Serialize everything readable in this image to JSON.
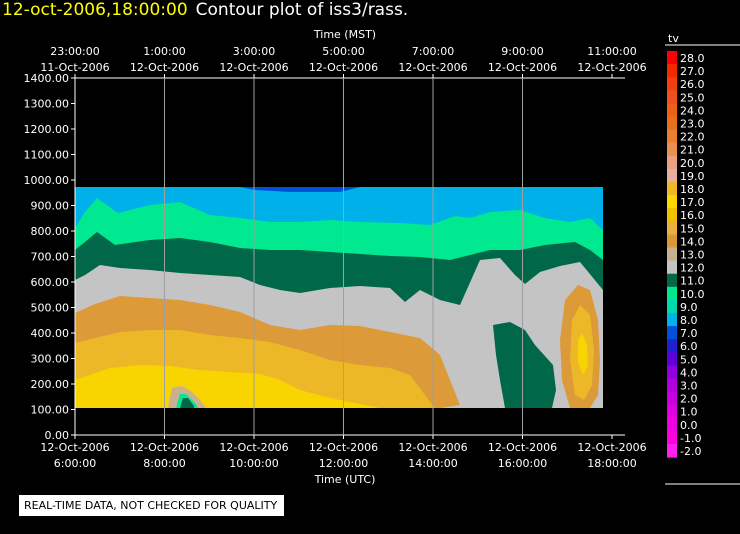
{
  "title": {
    "datetime": "12-oct-2006,18:00:00",
    "text": "Contour plot of iss3/rass."
  },
  "qc_notice": "REAL-TIME DATA, NOT CHECKED FOR QUALITY",
  "chart_data": {
    "type": "contour",
    "xlabel_top": "Time (MST)",
    "xlabel_bottom": "Time (UTC)",
    "x_top_ticks": [
      {
        "time": "23:00:00",
        "date": "11-Oct-2006"
      },
      {
        "time": "1:00:00",
        "date": "12-Oct-2006"
      },
      {
        "time": "3:00:00",
        "date": "12-Oct-2006"
      },
      {
        "time": "5:00:00",
        "date": "12-Oct-2006"
      },
      {
        "time": "7:00:00",
        "date": "12-Oct-2006"
      },
      {
        "time": "9:00:00",
        "date": "12-Oct-2006"
      },
      {
        "time": "11:00:00",
        "date": "12-Oct-2006"
      }
    ],
    "x_bottom_ticks": [
      {
        "date": "12-Oct-2006",
        "time": "6:00:00"
      },
      {
        "date": "12-Oct-2006",
        "time": "8:00:00"
      },
      {
        "date": "12-Oct-2006",
        "time": "10:00:00"
      },
      {
        "date": "12-Oct-2006",
        "time": "12:00:00"
      },
      {
        "date": "12-Oct-2006",
        "time": "14:00:00"
      },
      {
        "date": "12-Oct-2006",
        "time": "16:00:00"
      },
      {
        "date": "12-Oct-2006",
        "time": "18:00:00"
      }
    ],
    "y_ticks": [
      "1400.00",
      "1300.00",
      "1200.00",
      "1100.00",
      "1000.00",
      "900.00",
      "800.00",
      "700.00",
      "600.00",
      "500.00",
      "400.00",
      "300.00",
      "200.00",
      "100.00",
      "0.00"
    ],
    "ylim": [
      0,
      1400
    ],
    "x_range_utc_hours": [
      6,
      18
    ],
    "data_x_range_utc_hours": [
      6.0,
      17.8
    ],
    "data_y_range": [
      100,
      970
    ],
    "grid": "vertical lines at labeled times",
    "colorbar": {
      "label": "tv",
      "levels": [
        "28.0",
        "27.0",
        "26.0",
        "25.0",
        "24.0",
        "23.0",
        "22.0",
        "21.0",
        "20.0",
        "19.0",
        "18.0",
        "17.0",
        "16.0",
        "15.0",
        "14.0",
        "13.0",
        "12.0",
        "11.0",
        "10.0",
        "9.0",
        "8.0",
        "7.0",
        "6.0",
        "5.0",
        "4.0",
        "3.0",
        "2.0",
        "1.0",
        "0.0",
        "-1.0",
        "-2.0"
      ],
      "colors": [
        "#ff0000",
        "#f42a00",
        "#f04010",
        "#ee5020",
        "#ec6018",
        "#e8701c",
        "#e88030",
        "#e89050",
        "#e8a080",
        "#e6b0a0",
        "#f0b828",
        "#fcd800",
        "#f0c000",
        "#e8b040",
        "#dc9838",
        "#c8b090",
        "#c4c4c4",
        "#006848",
        "#00e890",
        "#00d8b0",
        "#00b0e8",
        "#0050d8",
        "#2020d0",
        "#6000d8",
        "#9000e0",
        "#b000e0",
        "#c800e0",
        "#e000e0",
        "#f000e0",
        "#ff00e0",
        "#ff20f0"
      ]
    },
    "bands": [
      {
        "range": "16.0-17.0",
        "color": "#f8d400"
      },
      {
        "range": "15.0-16.0",
        "color": "#ecb828"
      },
      {
        "range": "14.0-15.0",
        "color": "#dc9a38"
      },
      {
        "range": "12.0-13.0",
        "color": "#c4c4c4"
      },
      {
        "range": "11.0-12.0",
        "color": "#006848"
      },
      {
        "range": "10.0-11.0",
        "color": "#00e890"
      },
      {
        "range": "9.0-10.0",
        "color": "#00b0e8"
      },
      {
        "range": "8.0-9.0",
        "color": "#0050d8"
      }
    ]
  }
}
